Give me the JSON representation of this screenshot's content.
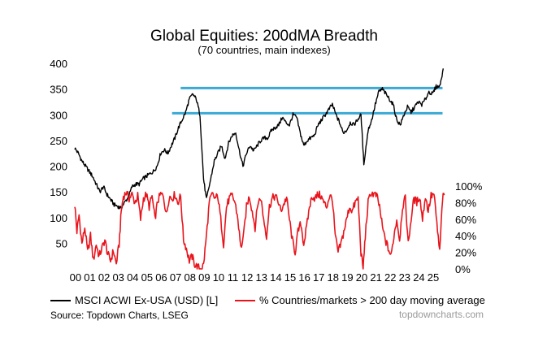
{
  "chart_data": {
    "type": "line",
    "title": "Global Equities: 200dMA Breadth",
    "subtitle": "(70 countries, main indexes)",
    "x_tick_labels": [
      "00",
      "01",
      "02",
      "03",
      "04",
      "05",
      "06",
      "07",
      "08",
      "09",
      "10",
      "11",
      "12",
      "13",
      "14",
      "15",
      "16",
      "17",
      "18",
      "19",
      "20",
      "21",
      "22",
      "23",
      "24",
      "25"
    ],
    "xlim": [
      2000,
      2025.9
    ],
    "left_axis": {
      "ylim": [
        0,
        400
      ],
      "ticks": [
        50,
        100,
        150,
        200,
        250,
        300,
        350,
        400
      ],
      "tick_labels": [
        "50",
        "100",
        "150",
        "200",
        "250",
        "300",
        "350",
        "400"
      ]
    },
    "right_axis": {
      "ylim": [
        0,
        100
      ],
      "ticks": [
        0,
        20,
        40,
        60,
        80,
        100
      ],
      "tick_labels": [
        "0%",
        "20%",
        "40%",
        "60%",
        "80%",
        "100%"
      ]
    },
    "series": [
      {
        "name": "MSCI ACWI Ex-USA (USD) [L]",
        "color": "#000000",
        "axis": "left",
        "x": [
          2000.0,
          2000.25,
          2000.5,
          2000.75,
          2001.0,
          2001.25,
          2001.5,
          2001.75,
          2002.0,
          2002.25,
          2002.5,
          2002.75,
          2003.0,
          2003.2,
          2003.5,
          2003.75,
          2004.0,
          2004.25,
          2004.5,
          2004.75,
          2005.0,
          2005.25,
          2005.5,
          2005.75,
          2006.0,
          2006.25,
          2006.5,
          2006.75,
          2007.0,
          2007.25,
          2007.5,
          2007.75,
          2008.0,
          2008.25,
          2008.5,
          2008.75,
          2009.0,
          2009.2,
          2009.5,
          2009.75,
          2010.0,
          2010.25,
          2010.5,
          2010.75,
          2011.0,
          2011.25,
          2011.5,
          2011.75,
          2012.0,
          2012.25,
          2012.5,
          2012.75,
          2013.0,
          2013.25,
          2013.5,
          2013.75,
          2014.0,
          2014.25,
          2014.5,
          2014.75,
          2015.0,
          2015.25,
          2015.5,
          2015.75,
          2016.0,
          2016.25,
          2016.5,
          2016.75,
          2017.0,
          2017.25,
          2017.5,
          2017.75,
          2018.0,
          2018.25,
          2018.5,
          2018.75,
          2019.0,
          2019.25,
          2019.5,
          2019.75,
          2020.0,
          2020.2,
          2020.5,
          2020.75,
          2021.0,
          2021.25,
          2021.5,
          2021.75,
          2022.0,
          2022.25,
          2022.5,
          2022.75,
          2023.0,
          2023.25,
          2023.5,
          2023.75,
          2024.0,
          2024.25,
          2024.5,
          2024.75,
          2025.0,
          2025.25,
          2025.5,
          2025.75
        ],
        "y": [
          235,
          225,
          210,
          200,
          190,
          180,
          165,
          150,
          160,
          145,
          135,
          125,
          122,
          118,
          130,
          140,
          160,
          165,
          165,
          175,
          180,
          185,
          190,
          200,
          225,
          232,
          225,
          240,
          255,
          275,
          290,
          305,
          330,
          340,
          330,
          300,
          175,
          135,
          175,
          210,
          225,
          240,
          215,
          245,
          260,
          265,
          230,
          200,
          225,
          240,
          230,
          240,
          250,
          255,
          255,
          270,
          275,
          280,
          295,
          285,
          280,
          300,
          295,
          265,
          240,
          250,
          255,
          260,
          280,
          290,
          300,
          310,
          320,
          300,
          285,
          265,
          270,
          285,
          280,
          290,
          300,
          205,
          270,
          290,
          320,
          345,
          350,
          340,
          330,
          320,
          290,
          280,
          300,
          315,
          305,
          315,
          325,
          320,
          330,
          345,
          340,
          355,
          355,
          390
        ]
      },
      {
        "name": "% Countries/markets > 200 day moving average",
        "color": "#e8141c",
        "axis": "right",
        "x": [
          2000.0,
          2000.15,
          2000.3,
          2000.5,
          2000.7,
          2000.9,
          2001.1,
          2001.3,
          2001.5,
          2001.7,
          2001.9,
          2002.1,
          2002.3,
          2002.5,
          2002.7,
          2002.9,
          2003.1,
          2003.25,
          2003.4,
          2003.6,
          2003.8,
          2004.0,
          2004.2,
          2004.4,
          2004.6,
          2004.8,
          2005.0,
          2005.2,
          2005.4,
          2005.6,
          2005.8,
          2006.0,
          2006.2,
          2006.4,
          2006.6,
          2006.8,
          2007.0,
          2007.2,
          2007.4,
          2007.6,
          2007.8,
          2008.0,
          2008.2,
          2008.4,
          2008.6,
          2008.8,
          2009.0,
          2009.2,
          2009.4,
          2009.6,
          2009.8,
          2010.0,
          2010.2,
          2010.4,
          2010.6,
          2010.8,
          2011.0,
          2011.2,
          2011.4,
          2011.6,
          2011.8,
          2012.0,
          2012.2,
          2012.4,
          2012.6,
          2012.8,
          2013.0,
          2013.2,
          2013.4,
          2013.6,
          2013.8,
          2014.0,
          2014.2,
          2014.4,
          2014.6,
          2014.8,
          2015.0,
          2015.2,
          2015.4,
          2015.6,
          2015.8,
          2016.0,
          2016.2,
          2016.4,
          2016.6,
          2016.8,
          2017.0,
          2017.2,
          2017.4,
          2017.6,
          2017.8,
          2018.0,
          2018.2,
          2018.4,
          2018.6,
          2018.8,
          2019.0,
          2019.2,
          2019.4,
          2019.6,
          2019.8,
          2020.0,
          2020.15,
          2020.3,
          2020.5,
          2020.7,
          2020.9,
          2021.1,
          2021.3,
          2021.5,
          2021.7,
          2021.9,
          2022.1,
          2022.3,
          2022.5,
          2022.7,
          2022.9,
          2023.1,
          2023.3,
          2023.5,
          2023.7,
          2023.9,
          2024.1,
          2024.3,
          2024.5,
          2024.7,
          2024.9,
          2025.1,
          2025.3,
          2025.5,
          2025.7,
          2025.85
        ],
        "y": [
          78,
          45,
          65,
          30,
          50,
          20,
          40,
          10,
          30,
          15,
          25,
          35,
          18,
          10,
          22,
          6,
          30,
          70,
          88,
          92,
          85,
          90,
          80,
          88,
          60,
          85,
          90,
          75,
          88,
          60,
          82,
          90,
          88,
          65,
          88,
          85,
          90,
          80,
          88,
          35,
          25,
          10,
          15,
          5,
          2,
          0,
          5,
          40,
          80,
          90,
          85,
          88,
          60,
          30,
          75,
          85,
          88,
          80,
          60,
          25,
          40,
          75,
          88,
          70,
          50,
          80,
          86,
          60,
          40,
          75,
          85,
          88,
          82,
          70,
          78,
          86,
          60,
          35,
          20,
          45,
          55,
          30,
          50,
          75,
          88,
          85,
          90,
          88,
          80,
          75,
          88,
          85,
          40,
          20,
          30,
          45,
          60,
          75,
          70,
          80,
          85,
          20,
          0,
          40,
          80,
          92,
          90,
          88,
          75,
          50,
          35,
          25,
          15,
          40,
          60,
          35,
          75,
          85,
          30,
          60,
          85,
          80,
          88,
          60,
          88,
          70,
          88,
          90,
          55,
          20,
          85,
          90
        ]
      }
    ],
    "reference_lines": [
      {
        "axis": "left",
        "y": 352,
        "x_start": 2007.4,
        "x_end": 2025.7,
        "color": "#3aa9d6"
      },
      {
        "axis": "left",
        "y": 303,
        "x_start": 2006.8,
        "x_end": 2025.7,
        "color": "#3aa9d6"
      }
    ],
    "legend": {
      "position": "bottom",
      "entries": [
        {
          "label": "MSCI ACWI Ex-USA (USD) [L]",
          "color": "#000000"
        },
        {
          "label": "% Countries/markets > 200 day moving average",
          "color": "#e8141c"
        }
      ]
    },
    "source": "Source: Topdown Charts, LSEG",
    "watermark": "topdowncharts.com"
  }
}
